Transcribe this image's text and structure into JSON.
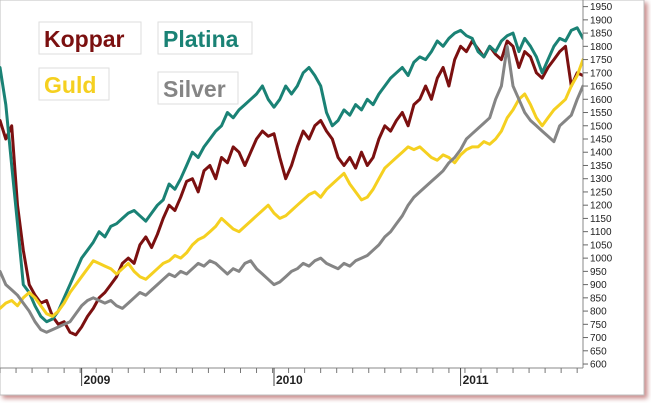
{
  "chart_data": {
    "type": "line",
    "title": "",
    "xlabel": "",
    "ylabel": "",
    "ylim": [
      585,
      1975
    ],
    "y_ticks": [
      600,
      650,
      700,
      750,
      800,
      850,
      900,
      950,
      1000,
      1050,
      1100,
      1150,
      1200,
      1250,
      1300,
      1350,
      1400,
      1450,
      1500,
      1550,
      1600,
      1650,
      1700,
      1750,
      1800,
      1850,
      1900,
      1950
    ],
    "x_ticks": [
      "2009",
      "2010",
      "2011"
    ],
    "x_index_range": [
      0,
      100
    ],
    "x_tick_index": [
      14,
      47,
      79
    ],
    "legend": "top-left",
    "series": [
      {
        "name": "Koppar",
        "color": "#7b1010",
        "x": [
          0,
          1,
          2,
          3,
          4,
          5,
          6,
          7,
          8,
          9,
          10,
          11,
          12,
          13,
          14,
          15,
          16,
          17,
          18,
          19,
          20,
          21,
          22,
          23,
          24,
          25,
          26,
          27,
          28,
          29,
          30,
          31,
          32,
          33,
          34,
          35,
          36,
          37,
          38,
          39,
          40,
          41,
          42,
          43,
          44,
          45,
          46,
          47,
          48,
          49,
          50,
          51,
          52,
          53,
          54,
          55,
          56,
          57,
          58,
          59,
          60,
          61,
          62,
          63,
          64,
          65,
          66,
          67,
          68,
          69,
          70,
          71,
          72,
          73,
          74,
          75,
          76,
          77,
          78,
          79,
          80,
          81,
          82,
          83,
          84,
          85,
          86,
          87,
          88,
          89,
          90,
          91,
          92,
          93,
          94,
          95,
          96,
          97,
          98,
          99,
          100
        ],
        "values": [
          1520,
          1450,
          1500,
          1200,
          1030,
          900,
          860,
          830,
          840,
          780,
          750,
          760,
          720,
          710,
          740,
          780,
          810,
          850,
          870,
          900,
          930,
          980,
          1000,
          980,
          1050,
          1080,
          1040,
          1090,
          1150,
          1200,
          1180,
          1230,
          1290,
          1300,
          1250,
          1330,
          1350,
          1300,
          1380,
          1360,
          1420,
          1400,
          1350,
          1400,
          1450,
          1480,
          1460,
          1470,
          1380,
          1300,
          1350,
          1420,
          1480,
          1450,
          1500,
          1520,
          1480,
          1450,
          1380,
          1350,
          1380,
          1340,
          1400,
          1350,
          1380,
          1450,
          1500,
          1480,
          1520,
          1550,
          1500,
          1580,
          1600,
          1650,
          1600,
          1680,
          1720,
          1650,
          1750,
          1800,
          1780,
          1820,
          1790,
          1760,
          1800,
          1770,
          1750,
          1820,
          1800,
          1720,
          1780,
          1760,
          1700,
          1680,
          1720,
          1750,
          1780,
          1800,
          1650,
          1700,
          1690
        ]
      },
      {
        "name": "Platina",
        "color": "#1a8275",
        "x": [
          0,
          1,
          2,
          3,
          4,
          5,
          6,
          7,
          8,
          9,
          10,
          11,
          12,
          13,
          14,
          15,
          16,
          17,
          18,
          19,
          20,
          21,
          22,
          23,
          24,
          25,
          26,
          27,
          28,
          29,
          30,
          31,
          32,
          33,
          34,
          35,
          36,
          37,
          38,
          39,
          40,
          41,
          42,
          43,
          44,
          45,
          46,
          47,
          48,
          49,
          50,
          51,
          52,
          53,
          54,
          55,
          56,
          57,
          58,
          59,
          60,
          61,
          62,
          63,
          64,
          65,
          66,
          67,
          68,
          69,
          70,
          71,
          72,
          73,
          74,
          75,
          76,
          77,
          78,
          79,
          80,
          81,
          82,
          83,
          84,
          85,
          86,
          87,
          88,
          89,
          90,
          91,
          92,
          93,
          94,
          95,
          96,
          97,
          98,
          99,
          100
        ],
        "values": [
          1720,
          1580,
          1350,
          1130,
          900,
          870,
          820,
          780,
          760,
          770,
          800,
          850,
          900,
          950,
          1000,
          1030,
          1060,
          1100,
          1080,
          1120,
          1130,
          1150,
          1170,
          1180,
          1160,
          1140,
          1170,
          1200,
          1220,
          1280,
          1260,
          1300,
          1350,
          1400,
          1380,
          1420,
          1450,
          1480,
          1500,
          1550,
          1530,
          1560,
          1580,
          1600,
          1620,
          1650,
          1600,
          1570,
          1600,
          1650,
          1620,
          1650,
          1700,
          1720,
          1690,
          1650,
          1550,
          1500,
          1520,
          1560,
          1540,
          1580,
          1560,
          1600,
          1580,
          1620,
          1650,
          1680,
          1700,
          1720,
          1690,
          1740,
          1760,
          1750,
          1780,
          1820,
          1800,
          1830,
          1850,
          1860,
          1840,
          1830,
          1780,
          1760,
          1800,
          1780,
          1820,
          1840,
          1850,
          1780,
          1830,
          1800,
          1760,
          1700,
          1750,
          1800,
          1830,
          1820,
          1860,
          1870,
          1830
        ]
      },
      {
        "name": "Guld",
        "color": "#f5d020",
        "x": [
          0,
          1,
          2,
          3,
          4,
          5,
          6,
          7,
          8,
          9,
          10,
          11,
          12,
          13,
          14,
          15,
          16,
          17,
          18,
          19,
          20,
          21,
          22,
          23,
          24,
          25,
          26,
          27,
          28,
          29,
          30,
          31,
          32,
          33,
          34,
          35,
          36,
          37,
          38,
          39,
          40,
          41,
          42,
          43,
          44,
          45,
          46,
          47,
          48,
          49,
          50,
          51,
          52,
          53,
          54,
          55,
          56,
          57,
          58,
          59,
          60,
          61,
          62,
          63,
          64,
          65,
          66,
          67,
          68,
          69,
          70,
          71,
          72,
          73,
          74,
          75,
          76,
          77,
          78,
          79,
          80,
          81,
          82,
          83,
          84,
          85,
          86,
          87,
          88,
          89,
          90,
          91,
          92,
          93,
          94,
          95,
          96,
          97,
          98,
          99,
          100
        ],
        "values": [
          810,
          830,
          840,
          820,
          850,
          870,
          850,
          820,
          790,
          780,
          800,
          830,
          870,
          900,
          930,
          960,
          990,
          980,
          970,
          960,
          940,
          960,
          980,
          950,
          930,
          920,
          940,
          960,
          980,
          990,
          1010,
          1000,
          1020,
          1050,
          1070,
          1080,
          1100,
          1120,
          1150,
          1130,
          1110,
          1100,
          1120,
          1140,
          1160,
          1180,
          1200,
          1170,
          1150,
          1160,
          1180,
          1200,
          1220,
          1240,
          1250,
          1230,
          1260,
          1280,
          1300,
          1320,
          1280,
          1250,
          1220,
          1230,
          1260,
          1300,
          1340,
          1360,
          1380,
          1400,
          1420,
          1410,
          1420,
          1400,
          1380,
          1370,
          1390,
          1380,
          1360,
          1390,
          1410,
          1420,
          1420,
          1440,
          1430,
          1450,
          1480,
          1530,
          1560,
          1600,
          1620,
          1580,
          1530,
          1500,
          1530,
          1560,
          1580,
          1600,
          1650,
          1690,
          1750
        ]
      },
      {
        "name": "Silver",
        "color": "#858585",
        "x": [
          0,
          1,
          2,
          3,
          4,
          5,
          6,
          7,
          8,
          9,
          10,
          11,
          12,
          13,
          14,
          15,
          16,
          17,
          18,
          19,
          20,
          21,
          22,
          23,
          24,
          25,
          26,
          27,
          28,
          29,
          30,
          31,
          32,
          33,
          34,
          35,
          36,
          37,
          38,
          39,
          40,
          41,
          42,
          43,
          44,
          45,
          46,
          47,
          48,
          49,
          50,
          51,
          52,
          53,
          54,
          55,
          56,
          57,
          58,
          59,
          60,
          61,
          62,
          63,
          64,
          65,
          66,
          67,
          68,
          69,
          70,
          71,
          72,
          73,
          74,
          75,
          76,
          77,
          78,
          79,
          80,
          81,
          82,
          83,
          84,
          85,
          86,
          87,
          88,
          89,
          90,
          91,
          92,
          93,
          94,
          95,
          96,
          97,
          98,
          99,
          100
        ],
        "values": [
          950,
          900,
          880,
          860,
          830,
          800,
          760,
          730,
          720,
          730,
          740,
          750,
          760,
          790,
          820,
          840,
          850,
          840,
          830,
          840,
          820,
          810,
          830,
          850,
          870,
          860,
          880,
          900,
          920,
          940,
          930,
          950,
          940,
          960,
          980,
          970,
          990,
          980,
          960,
          940,
          960,
          950,
          980,
          990,
          960,
          940,
          920,
          900,
          910,
          930,
          950,
          960,
          980,
          970,
          990,
          1000,
          980,
          970,
          960,
          980,
          970,
          990,
          1000,
          1010,
          1030,
          1050,
          1080,
          1100,
          1130,
          1160,
          1200,
          1230,
          1250,
          1270,
          1290,
          1310,
          1330,
          1360,
          1380,
          1410,
          1450,
          1470,
          1490,
          1510,
          1530,
          1600,
          1650,
          1800,
          1650,
          1600,
          1550,
          1520,
          1500,
          1480,
          1460,
          1440,
          1500,
          1520,
          1540,
          1600,
          1650
        ]
      }
    ]
  }
}
